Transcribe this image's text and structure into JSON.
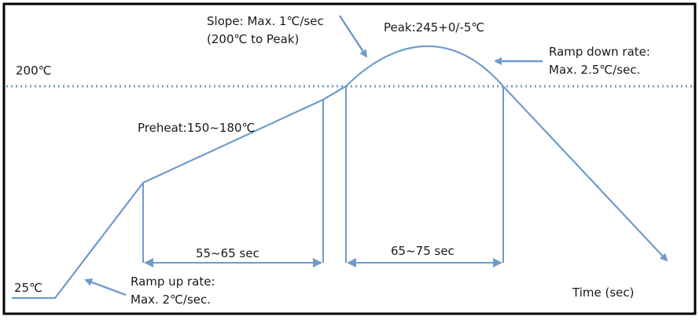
{
  "labels": {
    "temp_200": "200℃",
    "temp_25": "25℃",
    "slope_line1": "Slope: Max. 1℃/sec",
    "slope_line2": "(200℃ to Peak)",
    "peak": "Peak:245+0/-5℃",
    "ramp_down_line1": "Ramp down rate:",
    "ramp_down_line2": "Max. 2.5℃/sec.",
    "preheat": "Preheat:150~180℃",
    "preheat_duration": "55~65 sec",
    "reflow_duration": "65~75 sec",
    "ramp_up_line1": "Ramp up rate:",
    "ramp_up_line2": "Max. 2℃/sec.",
    "x_axis": "Time (sec)"
  },
  "colors": {
    "curve": "#6f9bcb",
    "reference_line": "#6f9bcb",
    "text": "#1a1a1a",
    "frame": "#000000"
  }
}
